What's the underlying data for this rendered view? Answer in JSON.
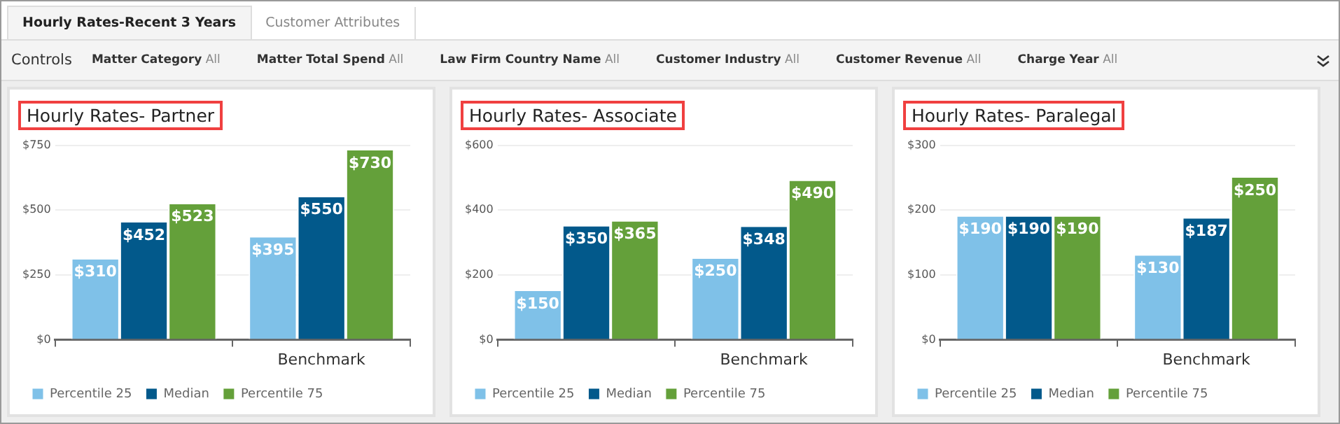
{
  "chart_data": [
    {
      "type": "other",
      "annotations": [
        "Hourly Rates-Recent 3 Years",
        "Customer Attributes"
      ]
    },
    {
      "type": "other",
      "annotations": [
        "Controls",
        "Matter Category",
        "All",
        "Matter Total Spend",
        "All",
        "Law Firm Country Name",
        "All",
        "Customer Industry",
        "All",
        "Customer Revenue",
        "All",
        "Charge Year",
        "All"
      ]
    },
    {
      "type": "bar",
      "title": "Hourly Rates- Partner",
      "categories": [
        null,
        "Benchmark"
      ],
      "series": [
        {
          "name": "Percentile 25",
          "color": "#7fc1e8",
          "values": [
            310,
            395
          ],
          "value_labels": [
            "$310",
            "$395"
          ]
        },
        {
          "name": "Median",
          "color": "#02598b",
          "values": [
            452,
            550
          ],
          "value_labels": [
            "$452",
            "$550"
          ]
        },
        {
          "name": "Percentile 75",
          "color": "#64a03a",
          "values": [
            523,
            730
          ],
          "value_labels": [
            "$523",
            "$730"
          ]
        }
      ],
      "ylim": [
        0,
        750
      ],
      "yticks": [
        {
          "value": 0,
          "label": "$0"
        },
        {
          "value": 250,
          "label": "$250"
        },
        {
          "value": 500,
          "label": "$500"
        },
        {
          "value": 750,
          "label": "$750"
        }
      ],
      "grid": "y",
      "legend": "bottom left"
    },
    {
      "type": "bar",
      "title": "Hourly Rates- Associate",
      "categories": [
        null,
        "Benchmark"
      ],
      "series": [
        {
          "name": "Percentile 25",
          "color": "#7fc1e8",
          "values": [
            150,
            250
          ],
          "value_labels": [
            "$150",
            "$250"
          ]
        },
        {
          "name": "Median",
          "color": "#02598b",
          "values": [
            350,
            348
          ],
          "value_labels": [
            "$350",
            "$348"
          ]
        },
        {
          "name": "Percentile 75",
          "color": "#64a03a",
          "values": [
            365,
            490
          ],
          "value_labels": [
            "$365",
            "$490"
          ]
        }
      ],
      "ylim": [
        0,
        600
      ],
      "yticks": [
        {
          "value": 0,
          "label": "$0"
        },
        {
          "value": 200,
          "label": "$200"
        },
        {
          "value": 400,
          "label": "$400"
        },
        {
          "value": 600,
          "label": "$600"
        }
      ],
      "grid": "y",
      "legend": "bottom left"
    },
    {
      "type": "bar",
      "title": "Hourly Rates- Paralegal",
      "categories": [
        null,
        "Benchmark"
      ],
      "series": [
        {
          "name": "Percentile 25",
          "color": "#7fc1e8",
          "values": [
            190,
            130
          ],
          "value_labels": [
            "$190",
            "$130"
          ]
        },
        {
          "name": "Median",
          "color": "#02598b",
          "values": [
            190,
            187
          ],
          "value_labels": [
            "$190",
            "$187"
          ]
        },
        {
          "name": "Percentile 75",
          "color": "#64a03a",
          "values": [
            190,
            250
          ],
          "value_labels": [
            "$190",
            "$250"
          ]
        }
      ],
      "ylim": [
        0,
        300
      ],
      "yticks": [
        {
          "value": 0,
          "label": "$0"
        },
        {
          "value": 100,
          "label": "$100"
        },
        {
          "value": 200,
          "label": "$200"
        },
        {
          "value": 300,
          "label": "$300"
        }
      ],
      "grid": "y",
      "legend": "bottom left"
    }
  ]
}
